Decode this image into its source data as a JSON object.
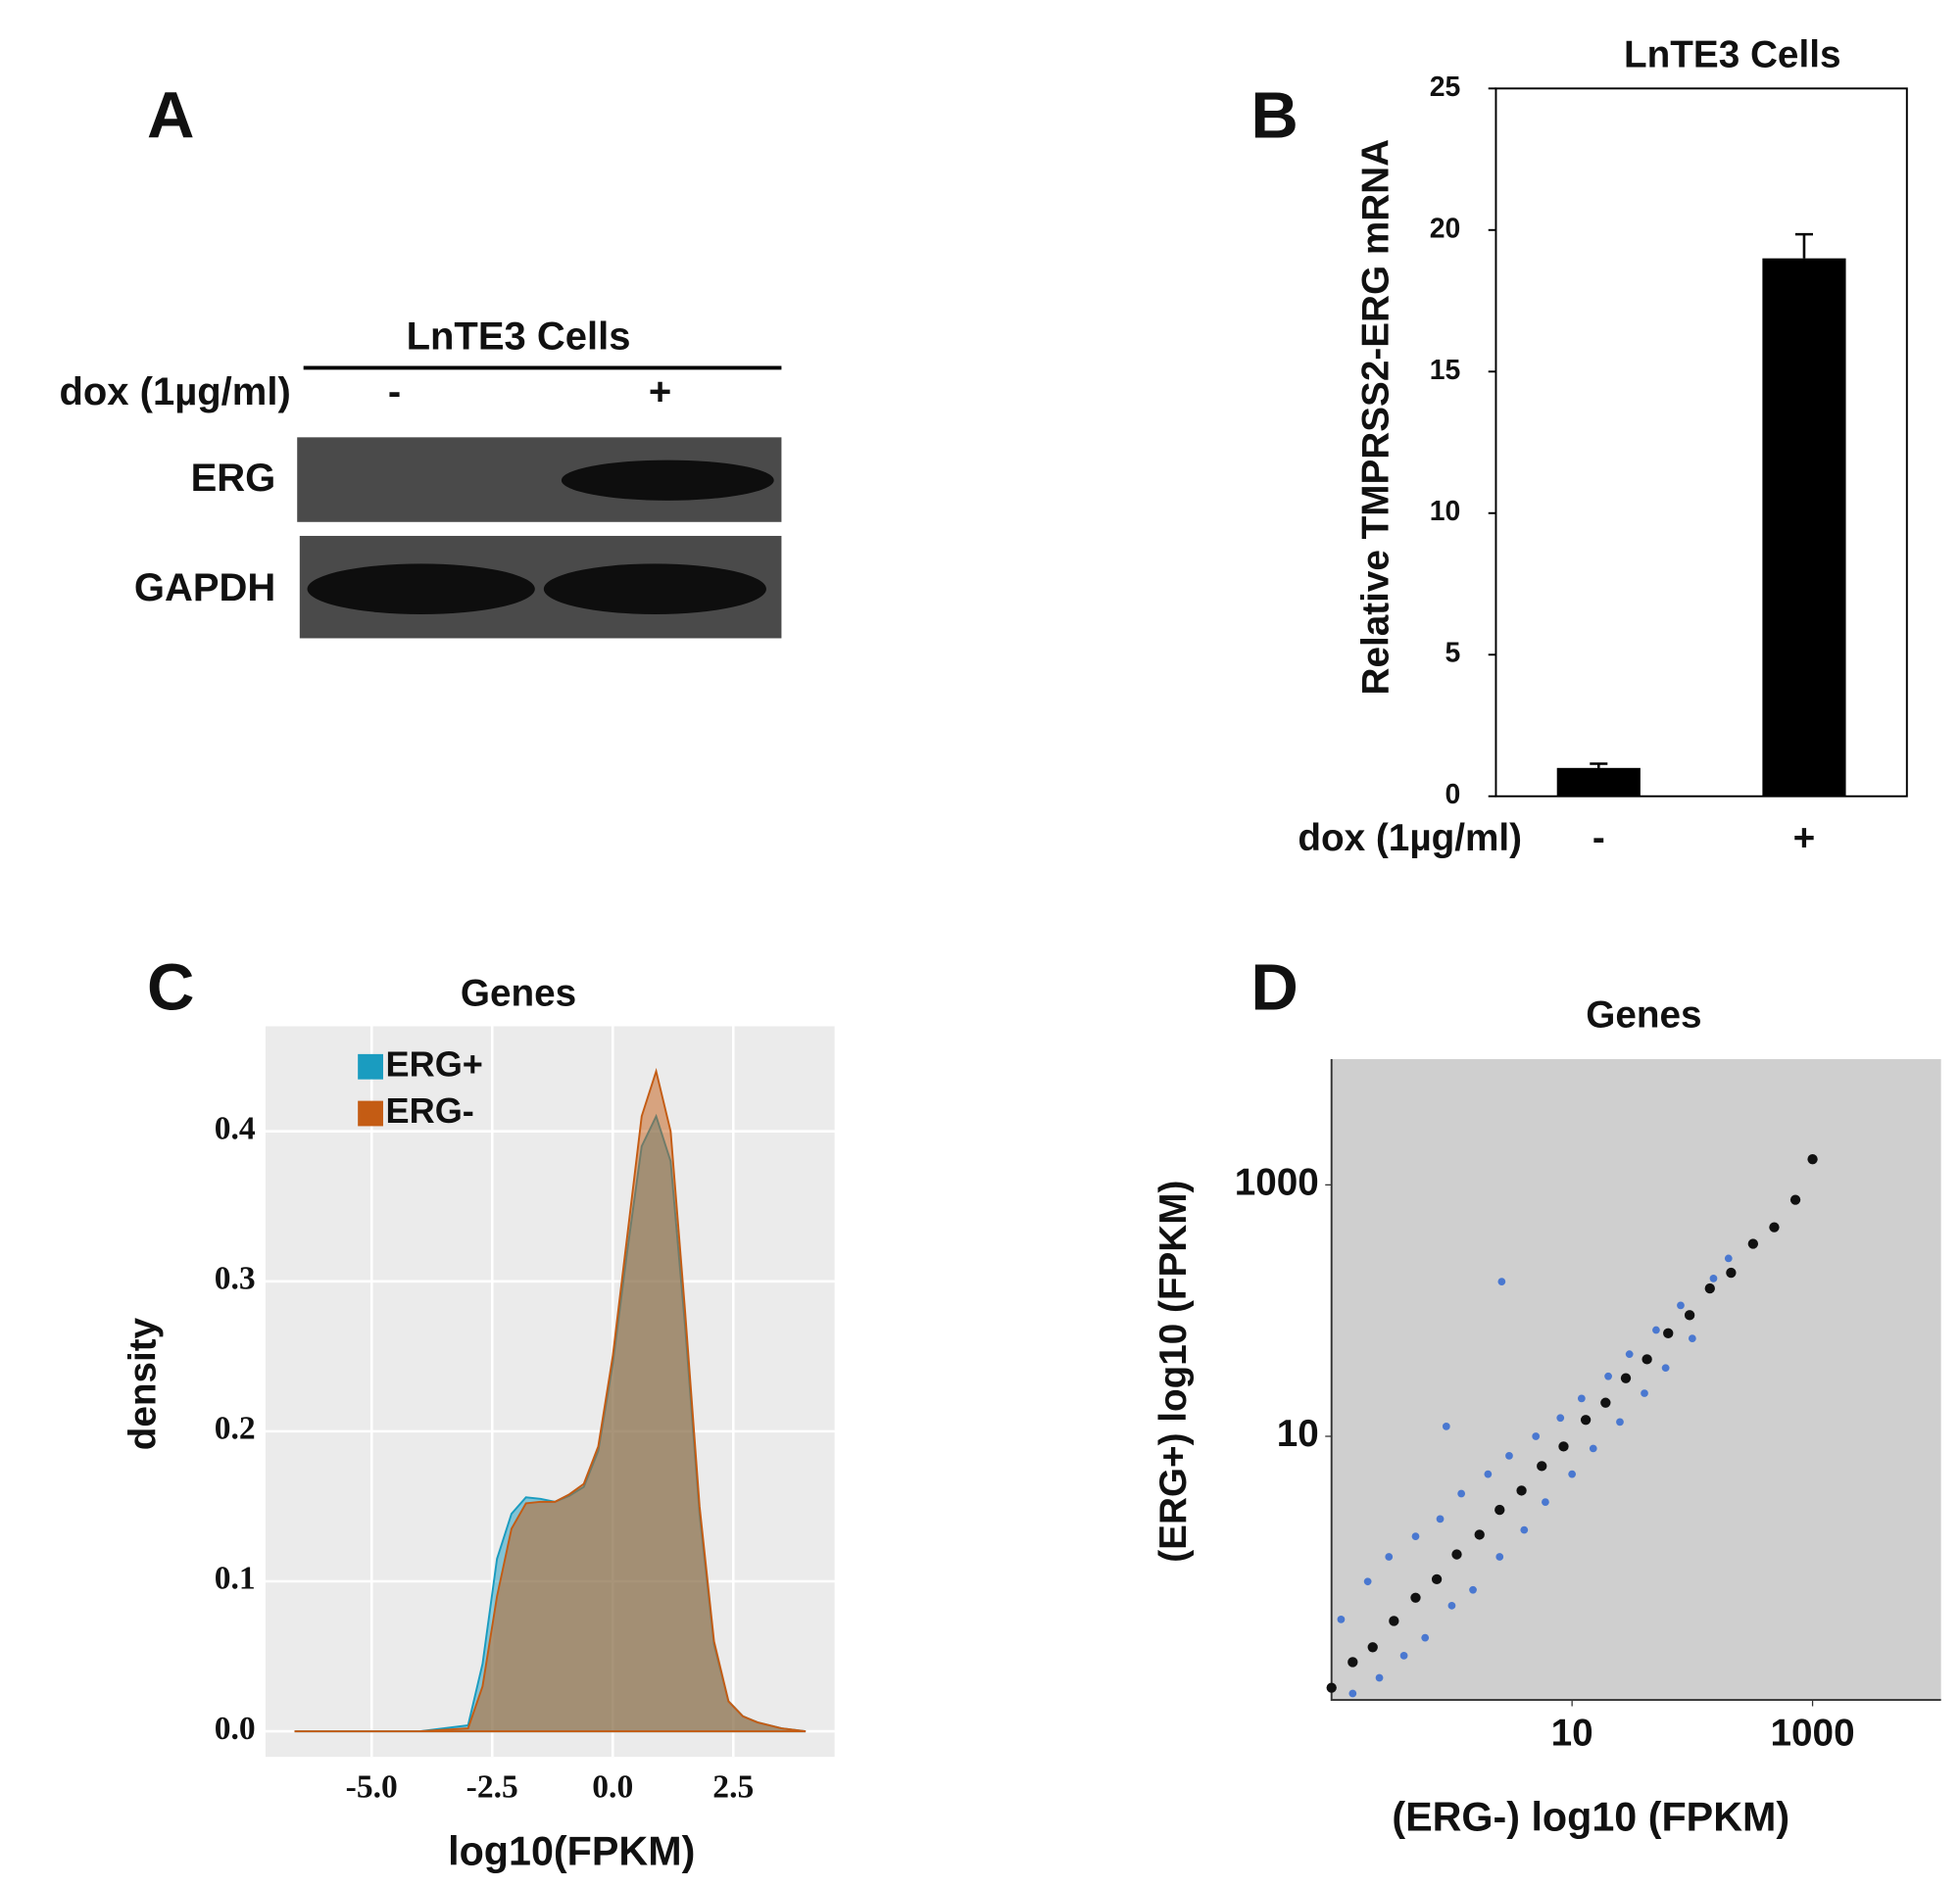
{
  "panel_labels": [
    "A",
    "B",
    "C",
    "D"
  ],
  "blot": {
    "title": "LnTE3 Cells",
    "condition": "dox (1µg/ml)",
    "lanes": [
      "-",
      "+"
    ],
    "rows": [
      "ERG",
      "GAPDH"
    ]
  },
  "chart_data": [
    {
      "type": "bar",
      "title": "LnTE3 Cells",
      "ylabel": "Relative TMPRSS2-ERG mRNA",
      "xlabel": "dox (1µg/ml)",
      "categories": [
        "-",
        "+"
      ],
      "values": [
        1.0,
        19.0
      ],
      "errors": [
        0.15,
        0.85
      ],
      "color": "#000000",
      "ylim": [
        0,
        25
      ],
      "yticks": [
        0,
        5,
        10,
        15,
        20,
        25
      ]
    },
    {
      "type": "area",
      "title": "Genes",
      "xlabel": "log10(FPKM)",
      "ylabel": "density",
      "grid": true,
      "legend": "top-left",
      "x": [
        -6.6,
        -4,
        -3,
        -2.7,
        -2.4,
        -2.1,
        -1.8,
        -1.5,
        -1.2,
        -0.9,
        -0.6,
        -0.3,
        0,
        0.3,
        0.6,
        0.9,
        1.2,
        1.5,
        1.8,
        2.1,
        2.4,
        2.7,
        3.0,
        3.5,
        4.0
      ],
      "series": [
        {
          "name": "ERG+",
          "color": "#1a9cc0",
          "values": [
            0,
            0,
            0.004,
            0.045,
            0.115,
            0.145,
            0.156,
            0.155,
            0.153,
            0.157,
            0.163,
            0.187,
            0.245,
            0.32,
            0.39,
            0.41,
            0.38,
            0.27,
            0.145,
            0.058,
            0.02,
            0.01,
            0.006,
            0.002,
            0
          ]
        },
        {
          "name": "ERG-",
          "color": "#c45c14",
          "values": [
            0,
            0,
            0.002,
            0.03,
            0.09,
            0.135,
            0.152,
            0.153,
            0.153,
            0.158,
            0.165,
            0.19,
            0.25,
            0.33,
            0.41,
            0.44,
            0.4,
            0.28,
            0.15,
            0.06,
            0.02,
            0.01,
            0.006,
            0.002,
            0
          ]
        }
      ],
      "xlim": [
        -7.2,
        4.6
      ],
      "ylim": [
        -0.017,
        0.47
      ],
      "xticks": [
        {
          "value": -5,
          "label": "-5.0"
        },
        {
          "value": -2.5,
          "label": "-2.5"
        },
        {
          "value": 0,
          "label": "0.0"
        },
        2.5
      ],
      "yticks": [
        {
          "value": 0,
          "label": "0.0"
        },
        0.1,
        0.2,
        0.3,
        0.4
      ]
    },
    {
      "type": "scatter",
      "title": "Genes",
      "xlabel": "(ERG-) log10 (FPKM)",
      "ylabel": "(ERG+) log10 (FPKM)",
      "xscale": "log",
      "yscale": "log",
      "xlim": [
        0.1,
        11700
      ],
      "ylim": [
        0.08,
        10000
      ],
      "xticks": [
        10,
        1000
      ],
      "yticks": [
        10,
        1000
      ],
      "series": [
        {
          "color": "#4a78d0",
          "x": [
            0.12,
            0.15,
            0.2,
            0.25,
            0.3,
            0.4,
            0.5,
            0.6,
            0.8,
            1,
            1.2,
            1.5,
            2,
            2.5,
            3,
            4,
            5,
            6,
            8,
            10,
            12,
            15,
            20,
            25,
            30,
            40,
            50,
            60,
            80,
            100,
            150,
            200,
            2.6,
            0.9
          ],
          "values": [
            0.35,
            0.09,
            0.7,
            0.12,
            1.1,
            0.18,
            1.6,
            0.25,
            2.2,
            0.45,
            3.5,
            0.6,
            5,
            1.1,
            7,
            1.8,
            10,
            3,
            14,
            5,
            20,
            8,
            30,
            13,
            45,
            22,
            70,
            35,
            110,
            60,
            180,
            260,
            170,
            12
          ]
        },
        {
          "color": "#111111",
          "x": [
            0.1,
            0.15,
            0.22,
            0.33,
            0.5,
            0.75,
            1.1,
            1.7,
            2.5,
            3.8,
            5.6,
            8.5,
            13,
            19,
            28,
            42,
            63,
            95,
            140,
            210,
            320,
            480,
            720,
            1000
          ],
          "values": [
            0.1,
            0.16,
            0.21,
            0.34,
            0.52,
            0.73,
            1.15,
            1.65,
            2.6,
            3.7,
            5.8,
            8.3,
            13.5,
            18.5,
            29,
            41,
            66,
            92,
            150,
            200,
            340,
            460,
            760,
            1600
          ]
        }
      ]
    }
  ]
}
